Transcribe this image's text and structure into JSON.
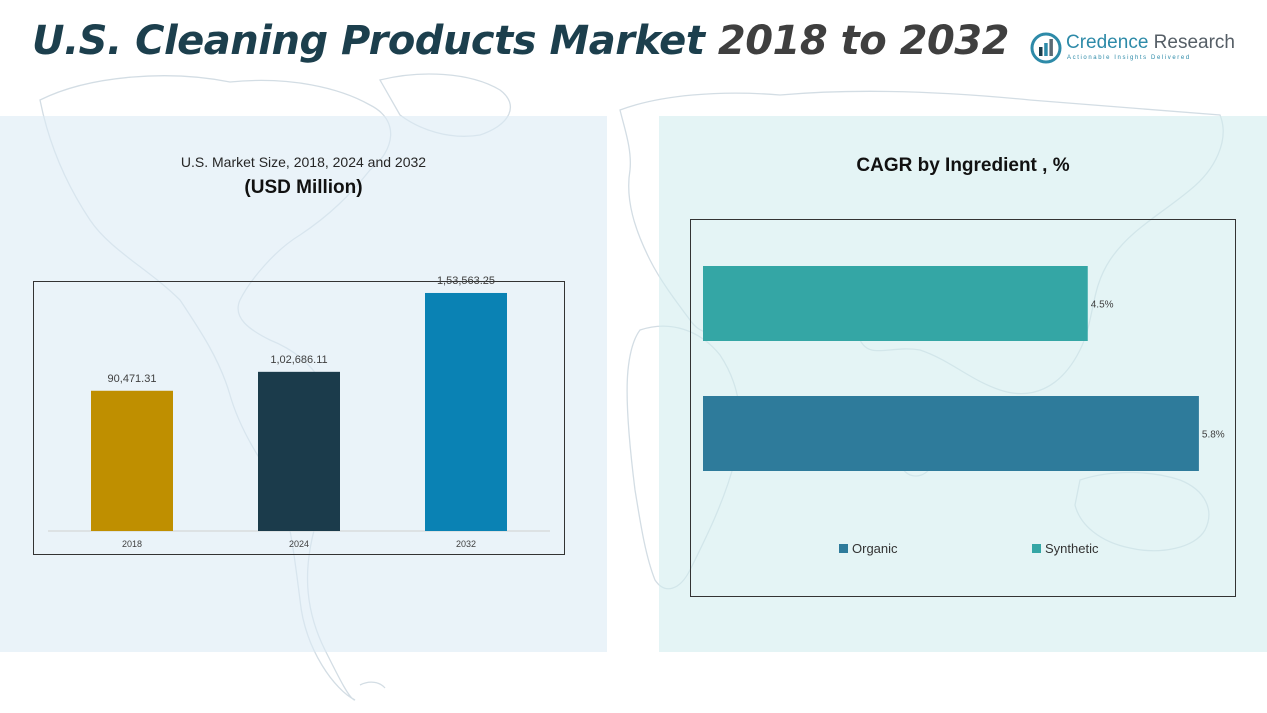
{
  "header": {
    "title_part1": "U.S. Cleaning Products Market",
    "title_part2": " 2018 to 2032"
  },
  "logo": {
    "name_part1": "Credence",
    "name_part2": " Research",
    "tagline": "Actionable Insights Delivered",
    "icon": "bar-chart-logo-icon"
  },
  "colors": {
    "title_dark": "#1c3f4d",
    "bar_2018": "#bf8f00",
    "bar_2024": "#1b3b4b",
    "bar_2032": "#0a82b4",
    "organic": "#2e7b9b",
    "synthetic": "#34a6a5"
  },
  "left_chart_text": {
    "subtitle": "U.S. Market Size, 2018, 2024 and 2032",
    "unit": "(USD Million)"
  },
  "right_chart_text": {
    "title": "CAGR by Ingredient , %"
  },
  "chart_data": [
    {
      "type": "bar",
      "title": "U.S. Market Size, 2018, 2024 and 2032",
      "ylabel": "(USD Million)",
      "categories": [
        "2018",
        "2024",
        "2032"
      ],
      "values": [
        90471.31,
        102686.11,
        153563.25
      ],
      "data_labels": [
        "90,471.31",
        "1,02,686.11",
        "1,53,563.25"
      ],
      "colors": [
        "#bf8f00",
        "#1b3b4b",
        "#0a82b4"
      ],
      "ylim": [
        0,
        160000
      ],
      "grid": false
    },
    {
      "type": "bar",
      "orientation": "horizontal",
      "title": "CAGR by Ingredient , %",
      "categories": [
        "Synthetic",
        "Organic"
      ],
      "values": [
        4.5,
        5.8
      ],
      "data_labels": [
        "4.5%",
        "5.8%"
      ],
      "colors": [
        "#34a6a5",
        "#2e7b9b"
      ],
      "xlim": [
        0,
        6.0
      ],
      "legend": [
        "Organic",
        "Synthetic"
      ],
      "legend_position": "bottom",
      "grid": false
    }
  ]
}
